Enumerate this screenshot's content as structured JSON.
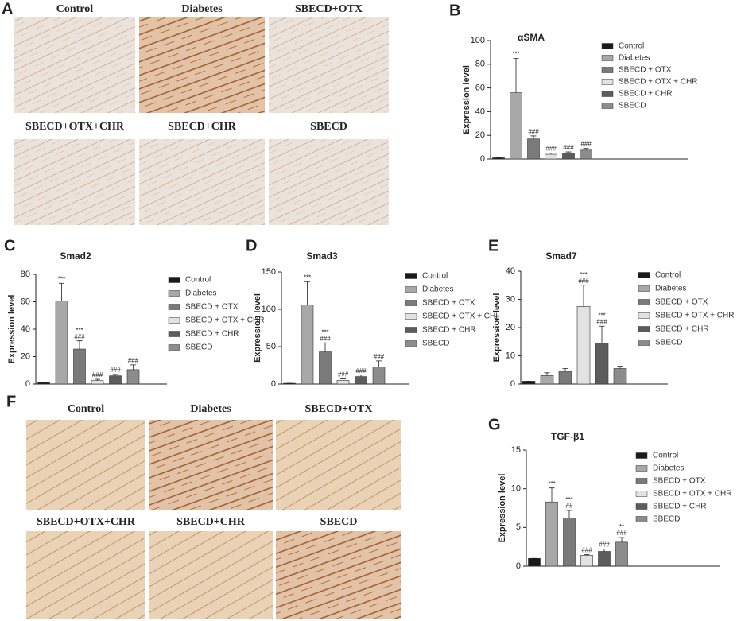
{
  "figure": {
    "panels": [
      {
        "letter": "A",
        "labels": [
          "Control",
          "Diabetes",
          "SBECD+OTX",
          "SBECD+OTX+CHR",
          "SBECD+CHR",
          "SBECD"
        ]
      },
      {
        "letter": "F",
        "labels": [
          "Control",
          "Diabetes",
          "SBECD+OTX",
          "SBECD+OTX+CHR",
          "SBECD+CHR",
          "SBECD"
        ]
      }
    ]
  },
  "chart_data": [
    {
      "type": "bar",
      "panel": "B",
      "title": "αSMA",
      "ylabel": "Expression level",
      "categories": [
        "Control",
        "Diabetes",
        "SBECD + OTX",
        "SBECD + OTX + CHR",
        "SBECD + CHR",
        "SBECD"
      ],
      "colors": [
        "#1a1a1a",
        "#a8a8a8",
        "#7a7a7a",
        "#e2e2e2",
        "#5c5c5c",
        "#8c8c8c"
      ],
      "values": [
        1,
        56,
        17,
        4,
        5,
        7.5
      ],
      "errors": [
        0,
        29,
        2.5,
        1,
        1,
        1.5
      ],
      "annotations": [
        [],
        [
          "***"
        ],
        [
          "###"
        ],
        [
          "###"
        ],
        [
          "###"
        ],
        [
          "###"
        ]
      ],
      "ylim": [
        0,
        100
      ],
      "yticks": [
        0,
        20,
        40,
        60,
        80,
        100
      ]
    },
    {
      "type": "bar",
      "panel": "C",
      "title": "Smad2",
      "ylabel": "Expression level",
      "categories": [
        "Control",
        "Diabetes",
        "SBECD + OTX",
        "SBECD + OTX + CHR",
        "SBECD + CHR",
        "SBECD"
      ],
      "colors": [
        "#1a1a1a",
        "#a8a8a8",
        "#7a7a7a",
        "#e2e2e2",
        "#5c5c5c",
        "#8c8c8c"
      ],
      "values": [
        1,
        60.5,
        25.5,
        2.5,
        6,
        10.5
      ],
      "errors": [
        0,
        13,
        6,
        1,
        1,
        3.5
      ],
      "annotations": [
        [],
        [
          "***"
        ],
        [
          "***",
          "###"
        ],
        [
          "###"
        ],
        [
          "###"
        ],
        [
          "###"
        ]
      ],
      "ylim": [
        0,
        80
      ],
      "yticks": [
        0,
        20,
        40,
        60,
        80
      ]
    },
    {
      "type": "bar",
      "panel": "D",
      "title": "Smad3",
      "ylabel": "Expression level",
      "categories": [
        "Control",
        "Diabetes",
        "SBECD + OTX",
        "SBECD + OTX + CHI",
        "SBECD + CHR",
        "SBECD"
      ],
      "colors": [
        "#1a1a1a",
        "#a8a8a8",
        "#7a7a7a",
        "#e2e2e2",
        "#5c5c5c",
        "#8c8c8c"
      ],
      "values": [
        1,
        106,
        43,
        5,
        10,
        23
      ],
      "errors": [
        0,
        31,
        12,
        2,
        2,
        8
      ],
      "annotations": [
        [],
        [
          "***"
        ],
        [
          "***",
          "###"
        ],
        [
          "###"
        ],
        [
          "###"
        ],
        [
          "###"
        ]
      ],
      "ylim": [
        0,
        150
      ],
      "yticks": [
        0,
        50,
        100,
        150
      ]
    },
    {
      "type": "bar",
      "panel": "E",
      "title": "Smad7",
      "ylabel": "Expression level",
      "categories": [
        "Control",
        "Diabetes",
        "SBECD + OTX",
        "SBECD + OTX + CHR",
        "SBECD + CHR",
        "SBECD"
      ],
      "colors": [
        "#1a1a1a",
        "#a8a8a8",
        "#7a7a7a",
        "#e2e2e2",
        "#5c5c5c",
        "#8c8c8c"
      ],
      "values": [
        1,
        3,
        4.5,
        27.5,
        14.5,
        5.5
      ],
      "errors": [
        0,
        1,
        1,
        7.5,
        6,
        0.8
      ],
      "annotations": [
        [],
        [],
        [],
        [
          "***",
          "###"
        ],
        [
          "***",
          "###"
        ],
        []
      ],
      "ylim": [
        0,
        40
      ],
      "yticks": [
        0,
        10,
        20,
        30,
        40
      ]
    },
    {
      "type": "bar",
      "panel": "G",
      "title": "TGF-β1",
      "ylabel": "Expression level",
      "categories": [
        "Control",
        "Diabetes",
        "SBECD + OTX",
        "SBECD + OTX + CHR",
        "SBECD + CHR",
        "SBECD"
      ],
      "colors": [
        "#1a1a1a",
        "#a8a8a8",
        "#7a7a7a",
        "#e2e2e2",
        "#5c5c5c",
        "#8c8c8c"
      ],
      "values": [
        1,
        8.3,
        6.2,
        1.4,
        1.9,
        3.1
      ],
      "errors": [
        0,
        1.8,
        1,
        0.1,
        0.3,
        0.6
      ],
      "annotations": [
        [],
        [
          "***"
        ],
        [
          "***",
          "##"
        ],
        [
          "###"
        ],
        [
          "###"
        ],
        [
          "**",
          "###"
        ]
      ],
      "ylim": [
        0,
        15
      ],
      "yticks": [
        0,
        5,
        10,
        15
      ]
    }
  ]
}
